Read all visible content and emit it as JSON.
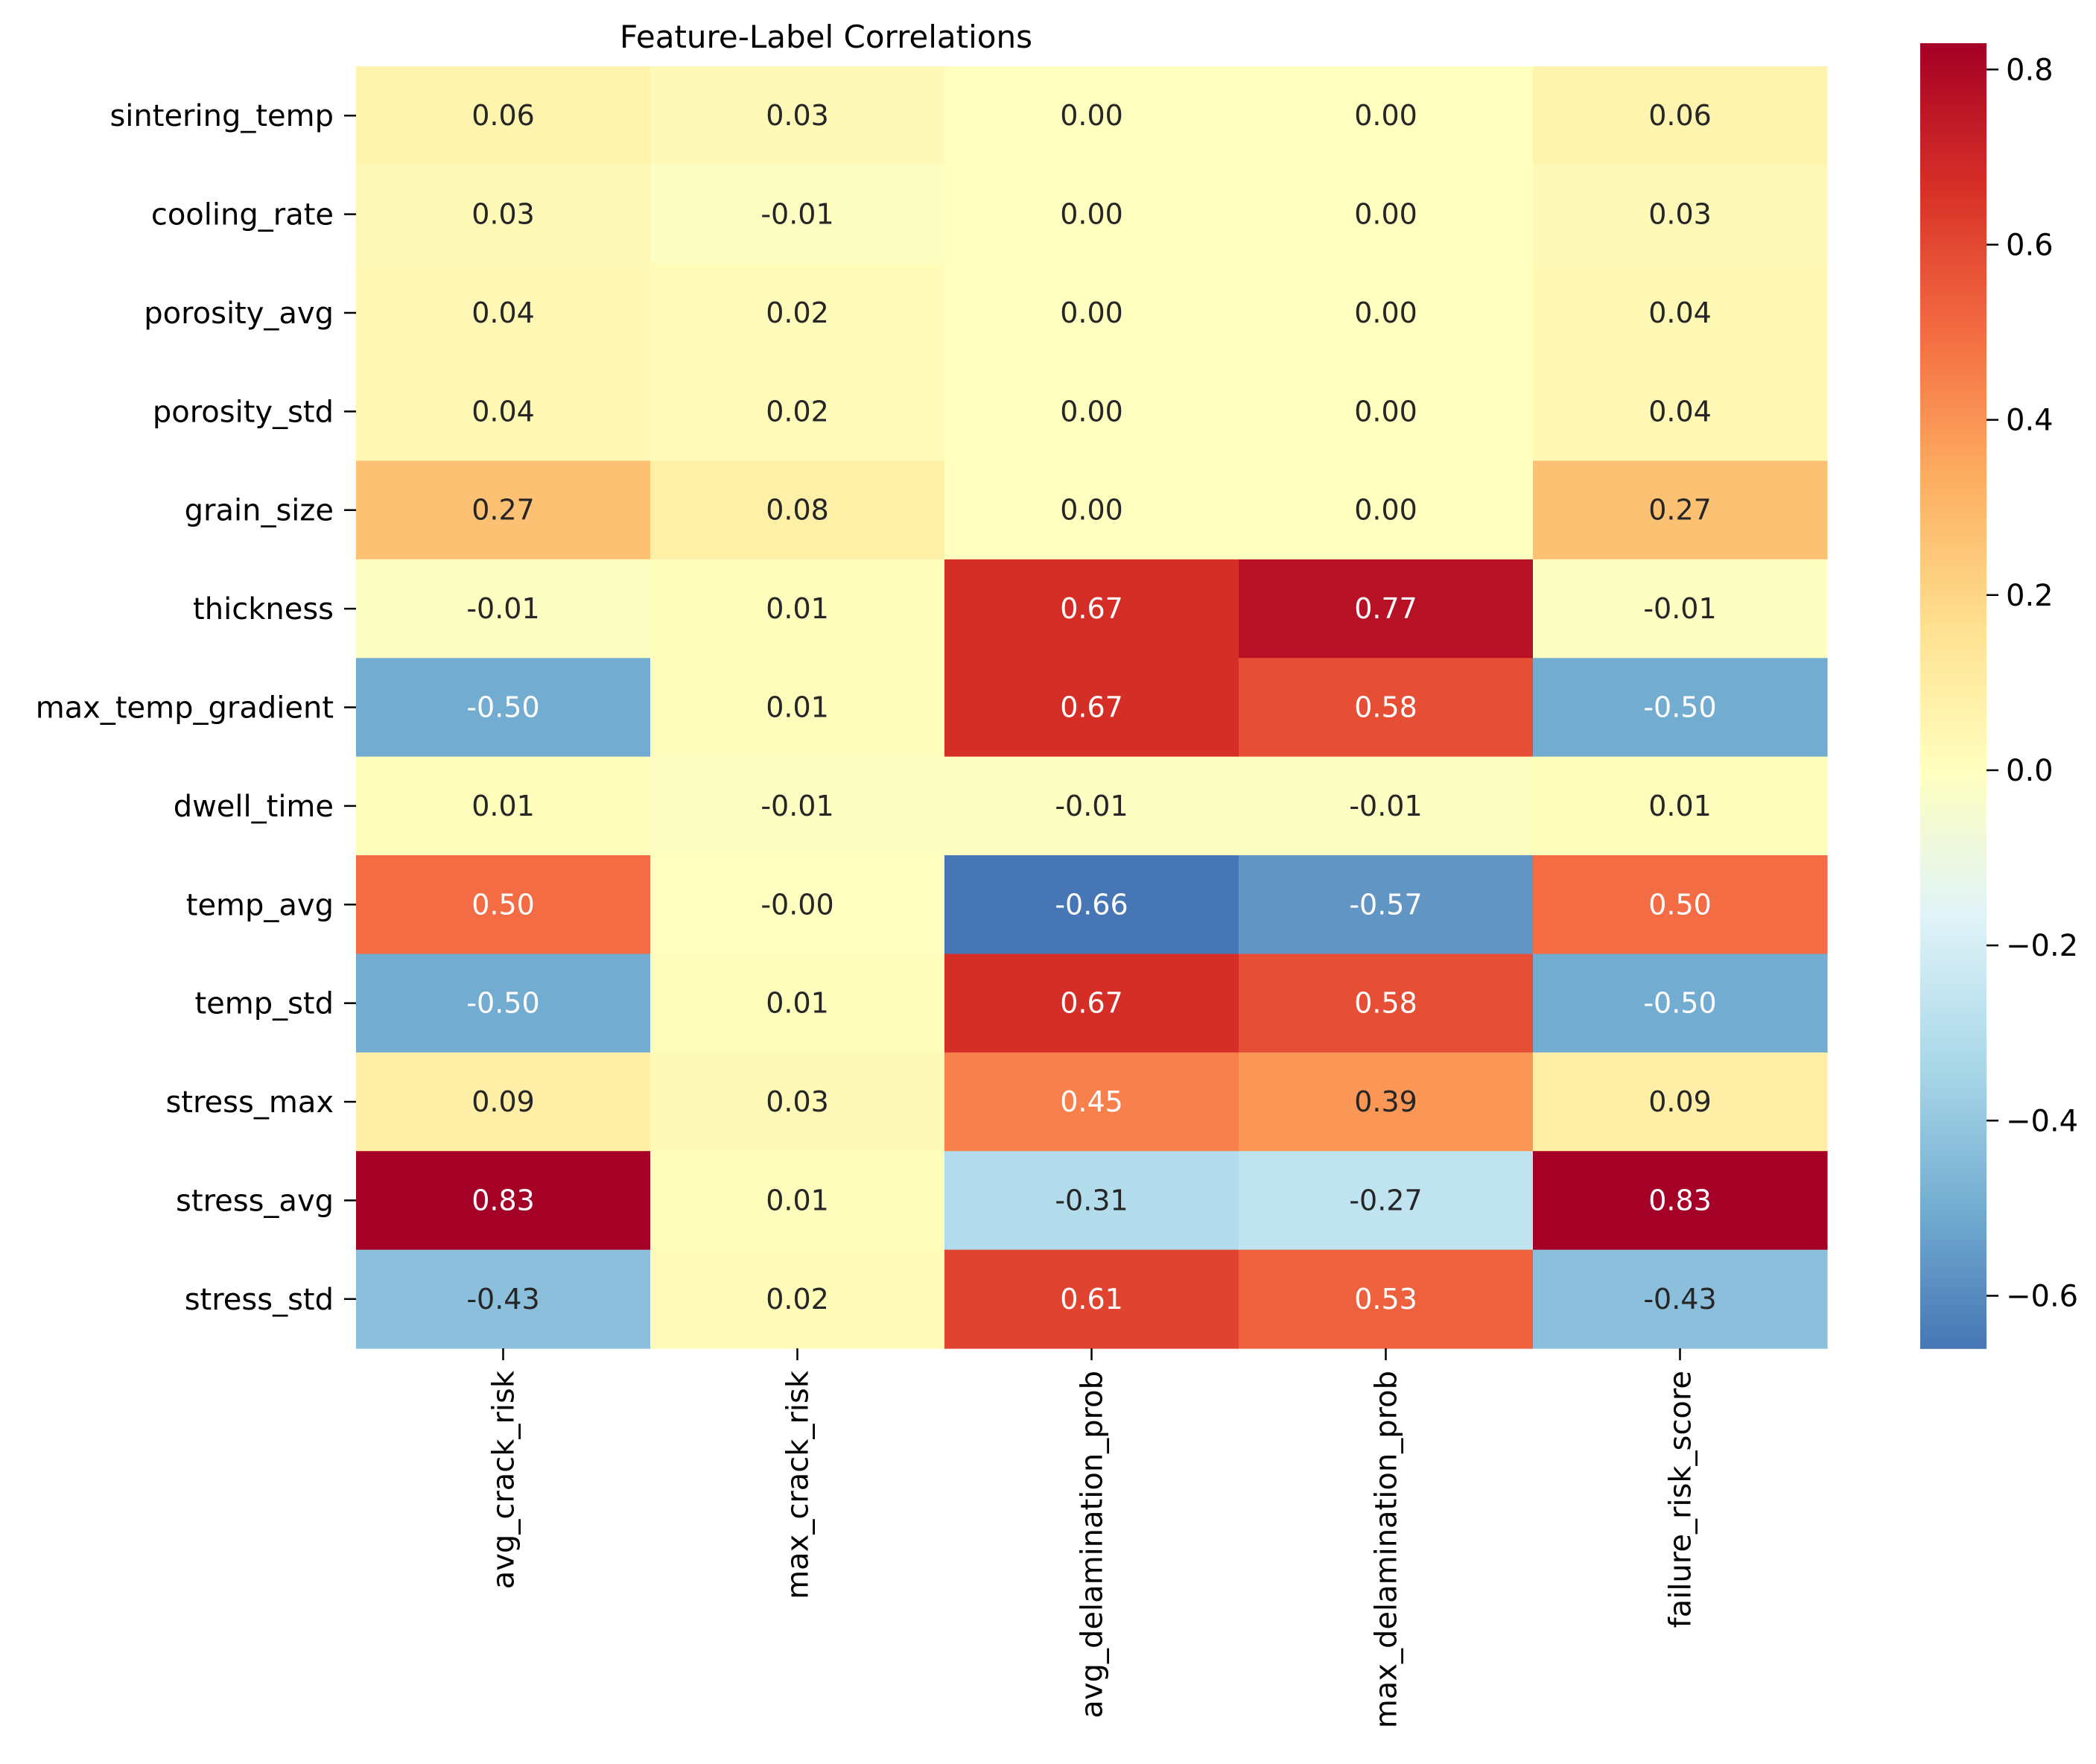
{
  "chart_data": {
    "type": "heatmap",
    "title": "Feature-Label Correlations",
    "rows": [
      "sintering_temp",
      "cooling_rate",
      "porosity_avg",
      "porosity_std",
      "grain_size",
      "thickness",
      "max_temp_gradient",
      "dwell_time",
      "temp_avg",
      "temp_std",
      "stress_max",
      "stress_avg",
      "stress_std"
    ],
    "columns": [
      "avg_crack_risk",
      "max_crack_risk",
      "avg_delamination_prob",
      "max_delamination_prob",
      "failure_risk_score"
    ],
    "values": [
      [
        0.06,
        0.03,
        0.0,
        0.0,
        0.06
      ],
      [
        0.03,
        -0.01,
        0.0,
        0.0,
        0.03
      ],
      [
        0.04,
        0.02,
        0.0,
        0.0,
        0.04
      ],
      [
        0.04,
        0.02,
        0.0,
        0.0,
        0.04
      ],
      [
        0.27,
        0.08,
        0.0,
        0.0,
        0.27
      ],
      [
        -0.01,
        0.01,
        0.67,
        0.77,
        -0.01
      ],
      [
        -0.5,
        0.01,
        0.67,
        0.58,
        -0.5
      ],
      [
        0.01,
        -0.01,
        -0.01,
        -0.01,
        0.01
      ],
      [
        0.5,
        -0.0,
        -0.66,
        -0.57,
        0.5
      ],
      [
        -0.5,
        0.01,
        0.67,
        0.58,
        -0.5
      ],
      [
        0.09,
        0.03,
        0.45,
        0.39,
        0.09
      ],
      [
        0.83,
        0.01,
        -0.31,
        -0.27,
        0.83
      ],
      [
        -0.43,
        0.02,
        0.61,
        0.53,
        -0.43
      ]
    ],
    "value_labels": [
      [
        "0.06",
        "0.03",
        "0.00",
        "0.00",
        "0.06"
      ],
      [
        "0.03",
        "-0.01",
        "0.00",
        "0.00",
        "0.03"
      ],
      [
        "0.04",
        "0.02",
        "0.00",
        "0.00",
        "0.04"
      ],
      [
        "0.04",
        "0.02",
        "0.00",
        "0.00",
        "0.04"
      ],
      [
        "0.27",
        "0.08",
        "0.00",
        "0.00",
        "0.27"
      ],
      [
        "-0.01",
        "0.01",
        "0.67",
        "0.77",
        "-0.01"
      ],
      [
        "-0.50",
        "0.01",
        "0.67",
        "0.58",
        "-0.50"
      ],
      [
        "0.01",
        "-0.01",
        "-0.01",
        "-0.01",
        "0.01"
      ],
      [
        "0.50",
        "-0.00",
        "-0.66",
        "-0.57",
        "0.50"
      ],
      [
        "-0.50",
        "0.01",
        "0.67",
        "0.58",
        "-0.50"
      ],
      [
        "0.09",
        "0.03",
        "0.45",
        "0.39",
        "0.09"
      ],
      [
        "0.83",
        "0.01",
        "-0.31",
        "-0.27",
        "0.83"
      ],
      [
        "-0.43",
        "0.02",
        "0.61",
        "0.53",
        "-0.43"
      ]
    ],
    "colormap": "RdYlBu_r",
    "colormap_colors": [
      "#313695",
      "#4575b4",
      "#74add1",
      "#abd9e9",
      "#e0f3f8",
      "#ffffbf",
      "#fee090",
      "#fdae61",
      "#f46d43",
      "#d73027",
      "#a50026"
    ],
    "colorbar": {
      "vmin": -0.66,
      "vmax": 0.83,
      "center": 0,
      "ticks": [
        -0.6,
        -0.4,
        -0.2,
        0.0,
        0.2,
        0.4,
        0.6,
        0.8
      ],
      "tick_labels": [
        "−0.6",
        "−0.4",
        "−0.2",
        "0.0",
        "0.2",
        "0.4",
        "0.6",
        "0.8"
      ]
    },
    "xlabel": "",
    "ylabel": ""
  }
}
